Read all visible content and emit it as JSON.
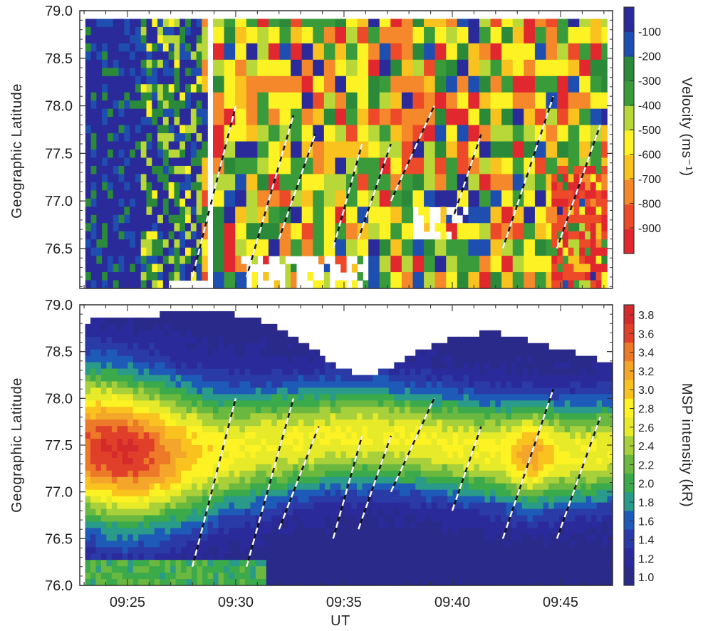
{
  "chart_data": [
    {
      "type": "heatmap",
      "panel": "top",
      "ylabel": "Geographic Latitude",
      "xlim": [
        9.38,
        9.79
      ],
      "ylim": [
        76.1,
        79.0
      ],
      "ytick_labels": [
        "79.0",
        "78.5",
        "78.0",
        "77.5",
        "77.0",
        "76.5"
      ],
      "ytick_values": [
        79.0,
        78.5,
        78.0,
        77.5,
        77.0,
        76.5
      ],
      "colorbar": {
        "title": "Velocity (ms⁻¹)",
        "labels": [
          "-100",
          "-200",
          "-300",
          "-400",
          "-500",
          "-600",
          "-700",
          "-800",
          "-900"
        ],
        "range": [
          -1000,
          0
        ],
        "colors": [
          "#e0282e",
          "#ec4a28",
          "#f4882a",
          "#f9c21e",
          "#fdf223",
          "#b8d83a",
          "#3a9b3a",
          "#2a8a3a",
          "#1e4fb0",
          "#2a2a9a"
        ]
      },
      "fronts": [
        {
          "t0": "09:28:00",
          "lat0": 76.2,
          "t1": "09:30:00",
          "lat1": 78.0
        },
        {
          "t0": "09:30:30",
          "lat0": 76.2,
          "t1": "09:32:40",
          "lat1": 77.9
        },
        {
          "t0": "09:32:00",
          "lat0": 76.6,
          "t1": "09:33:40",
          "lat1": 77.7
        },
        {
          "t0": "09:34:30",
          "lat0": 76.5,
          "t1": "09:35:50",
          "lat1": 77.6
        },
        {
          "t0": "09:35:40",
          "lat0": 76.6,
          "t1": "09:37:10",
          "lat1": 77.6
        },
        {
          "t0": "09:37:10",
          "lat0": 77.0,
          "t1": "09:39:10",
          "lat1": 78.0
        },
        {
          "t0": "09:40:00",
          "lat0": 76.8,
          "t1": "09:41:20",
          "lat1": 77.7
        },
        {
          "t0": "09:42:20",
          "lat0": 76.5,
          "t1": "09:44:40",
          "lat1": 78.1
        },
        {
          "t0": "09:44:50",
          "lat0": 76.5,
          "t1": "09:46:50",
          "lat1": 77.8
        }
      ]
    },
    {
      "type": "heatmap",
      "panel": "bottom",
      "xlabel": "UT",
      "ylabel": "Geographic Latitude",
      "xlim": [
        9.38,
        9.79
      ],
      "ylim": [
        76.0,
        79.0
      ],
      "xtick_labels": [
        "09:25",
        "09:30",
        "09:35",
        "09:40",
        "09:45"
      ],
      "xtick_values": [
        9.4167,
        9.5,
        9.5833,
        9.6667,
        9.75
      ],
      "ytick_labels": [
        "79.0",
        "78.5",
        "78.0",
        "77.5",
        "77.0",
        "76.5",
        "76.0"
      ],
      "ytick_values": [
        79.0,
        78.5,
        78.0,
        77.5,
        77.0,
        76.5,
        76.0
      ],
      "colorbar": {
        "title": "MSP intensity (kR)",
        "labels": [
          "3.8",
          "3.6",
          "3.4",
          "3.2",
          "3.0",
          "2.8",
          "2.6",
          "2.4",
          "2.2",
          "2.0",
          "1.8",
          "1.6",
          "1.4",
          "1.2",
          "1.0"
        ],
        "range": [
          1.0,
          3.9
        ],
        "colors": [
          "#2a2a8a",
          "#2a2a9a",
          "#2a3aa6",
          "#1e5ab8",
          "#2a9a8a",
          "#3aaa4a",
          "#6ab840",
          "#a8d03a",
          "#e6ea28",
          "#fdf223",
          "#f9c21e",
          "#f4a62a",
          "#ec7a28",
          "#e0402a",
          "#d42a2a"
        ]
      },
      "fronts": [
        {
          "t0": "09:28:00",
          "lat0": 76.2,
          "t1": "09:30:00",
          "lat1": 78.0
        },
        {
          "t0": "09:30:30",
          "lat0": 76.2,
          "t1": "09:32:40",
          "lat1": 78.0
        },
        {
          "t0": "09:32:00",
          "lat0": 76.6,
          "t1": "09:33:50",
          "lat1": 77.7
        },
        {
          "t0": "09:34:30",
          "lat0": 76.5,
          "t1": "09:35:50",
          "lat1": 77.6
        },
        {
          "t0": "09:35:40",
          "lat0": 76.6,
          "t1": "09:37:10",
          "lat1": 77.6
        },
        {
          "t0": "09:37:10",
          "lat0": 77.0,
          "t1": "09:39:10",
          "lat1": 78.0
        },
        {
          "t0": "09:40:00",
          "lat0": 76.8,
          "t1": "09:41:20",
          "lat1": 77.7
        },
        {
          "t0": "09:42:20",
          "lat0": 76.5,
          "t1": "09:44:40",
          "lat1": 78.1
        },
        {
          "t0": "09:44:50",
          "lat0": 76.5,
          "t1": "09:46:50",
          "lat1": 77.8
        }
      ]
    }
  ]
}
